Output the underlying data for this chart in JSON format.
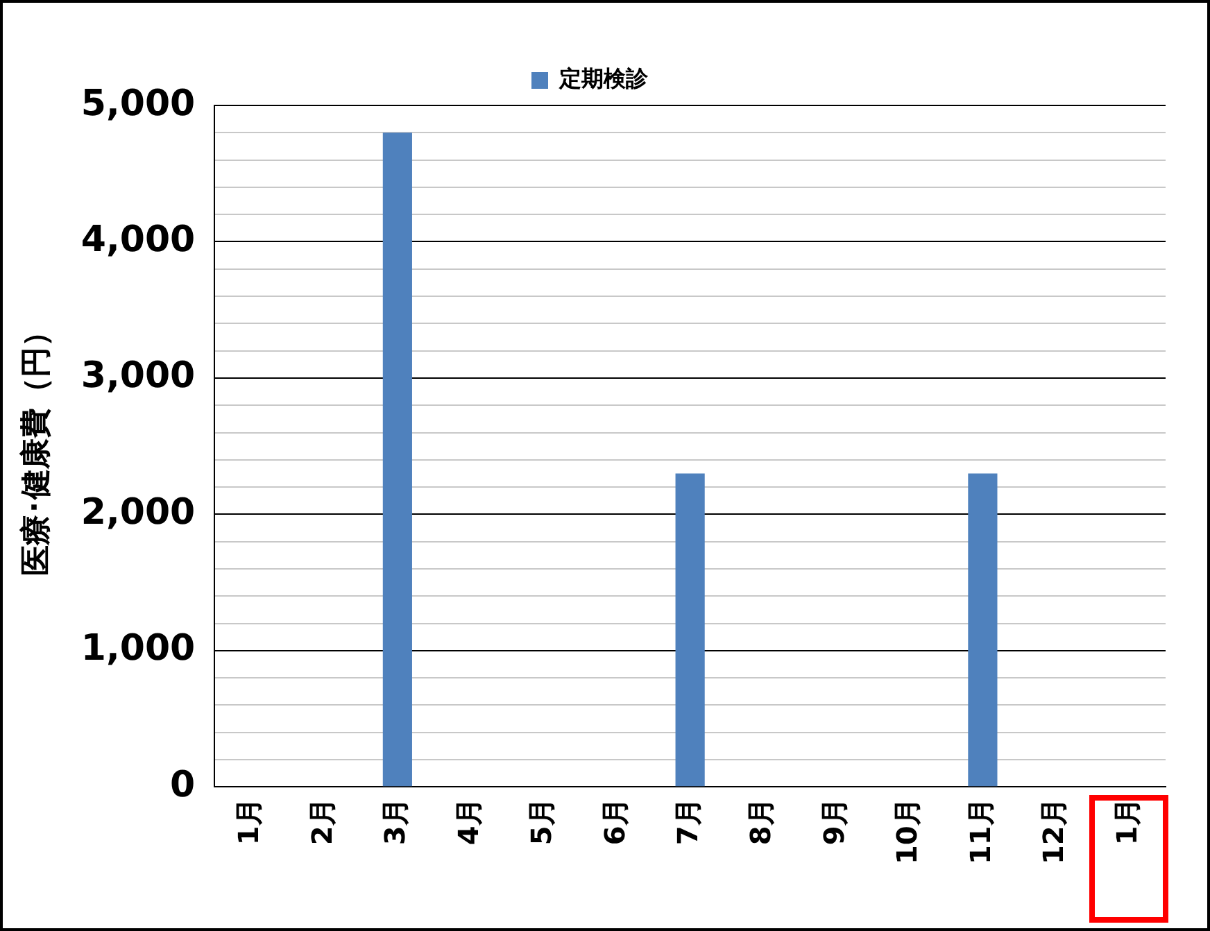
{
  "chart_data": {
    "type": "bar",
    "ylabel": "医療･健康費（円）",
    "categories": [
      "1月",
      "2月",
      "3月",
      "4月",
      "5月",
      "6月",
      "7月",
      "8月",
      "9月",
      "10月",
      "11月",
      "12月",
      "1月"
    ],
    "series": [
      {
        "name": "定期検診",
        "color": "#4f81bd",
        "values": [
          0,
          0,
          4800,
          0,
          0,
          0,
          2300,
          0,
          0,
          0,
          2300,
          0,
          0
        ]
      }
    ],
    "ylim": [
      0,
      5000
    ],
    "yticks": [
      {
        "value": 0,
        "label": "0"
      },
      {
        "value": 200,
        "label": null
      },
      {
        "value": 400,
        "label": null
      },
      {
        "value": 600,
        "label": null
      },
      {
        "value": 800,
        "label": null
      },
      {
        "value": 1000,
        "label": "1,000"
      },
      {
        "value": 1200,
        "label": null
      },
      {
        "value": 1400,
        "label": null
      },
      {
        "value": 1600,
        "label": null
      },
      {
        "value": 1800,
        "label": null
      },
      {
        "value": 2000,
        "label": "2,000"
      },
      {
        "value": 2200,
        "label": null
      },
      {
        "value": 2400,
        "label": null
      },
      {
        "value": 2600,
        "label": null
      },
      {
        "value": 2800,
        "label": null
      },
      {
        "value": 3000,
        "label": "3,000"
      },
      {
        "value": 3200,
        "label": null
      },
      {
        "value": 3400,
        "label": null
      },
      {
        "value": 3600,
        "label": null
      },
      {
        "value": 3800,
        "label": null
      },
      {
        "value": 4000,
        "label": "4,000"
      },
      {
        "value": 4200,
        "label": null
      },
      {
        "value": 4400,
        "label": null
      },
      {
        "value": 4600,
        "label": null
      },
      {
        "value": 4800,
        "label": null
      },
      {
        "value": 5000,
        "label": "5,000"
      }
    ],
    "grid": "y",
    "legend": "top"
  }
}
